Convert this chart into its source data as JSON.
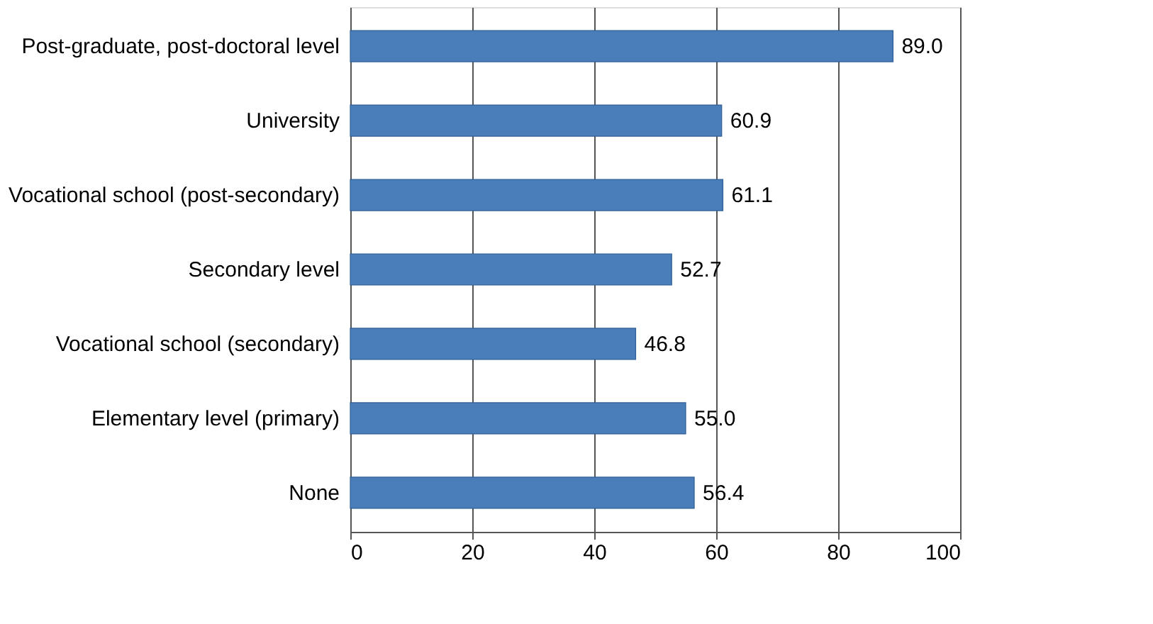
{
  "chart_data": {
    "type": "bar",
    "orientation": "horizontal",
    "categories": [
      "Post-graduate, post-doctoral level",
      "University",
      "Vocational school (post-secondary)",
      "Secondary level",
      "Vocational school (secondary)",
      "Elementary level (primary)",
      "None"
    ],
    "values": [
      89.0,
      60.9,
      61.1,
      52.7,
      46.8,
      55.0,
      56.4
    ],
    "value_labels": [
      "89.0",
      "60.9",
      "61.1",
      "52.7",
      "46.8",
      "55.0",
      "56.4"
    ],
    "color": "#4a7ebb",
    "xlim": [
      0,
      100
    ],
    "xticks": [
      0,
      20,
      40,
      60,
      80,
      100
    ],
    "grid": "x"
  }
}
